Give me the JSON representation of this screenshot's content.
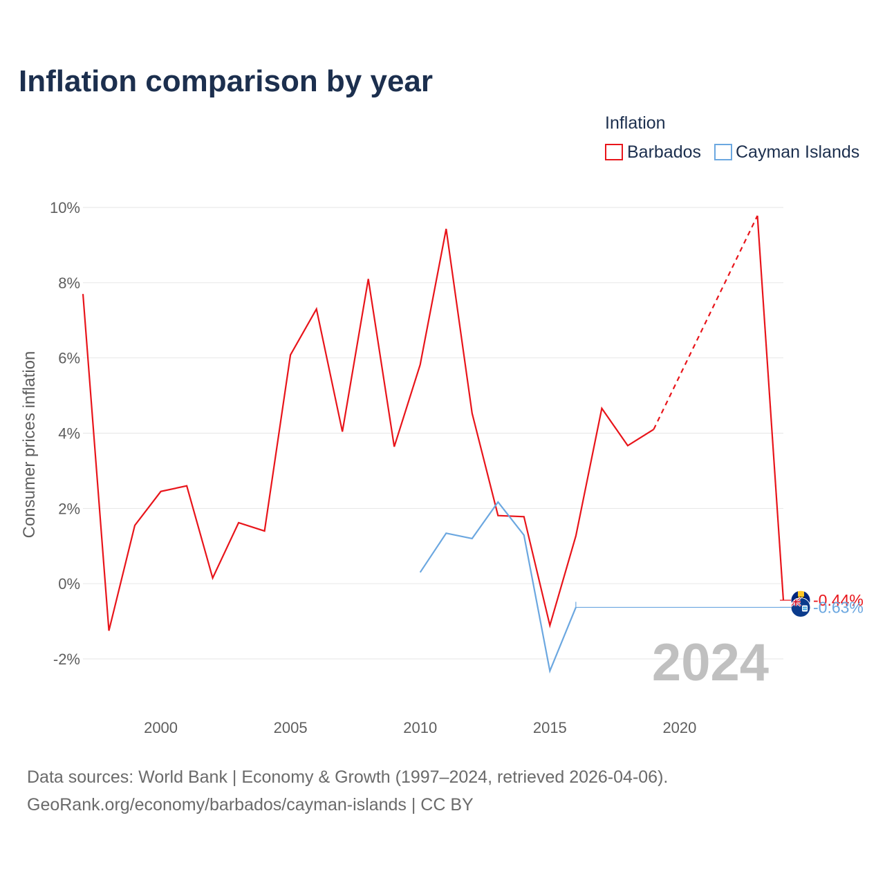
{
  "chart_data": {
    "type": "line",
    "title": "Inflation comparison by year",
    "legend": {
      "title": "Inflation",
      "placement": "top-right"
    },
    "xlabel": "",
    "ylabel": "Consumer prices inflation",
    "xlim": [
      1997,
      2024
    ],
    "ylim": [
      -2,
      10
    ],
    "x_ticks": [
      2000,
      2005,
      2010,
      2015,
      2020
    ],
    "x_tick_labels": [
      "2000",
      "2005",
      "2010",
      "2015",
      "2020"
    ],
    "y_ticks": [
      -2,
      0,
      2,
      4,
      6,
      8,
      10
    ],
    "y_tick_labels": [
      "-2%",
      "0%",
      "2%",
      "4%",
      "6%",
      "8%",
      "10%"
    ],
    "grid": true,
    "highlight_year": "2024",
    "series": [
      {
        "name": "Barbados",
        "color": "#e8141a",
        "flag_icon": "barbados-flag-icon",
        "end_label": "-0.44%",
        "gap_years": [
          2020,
          2021,
          2022
        ],
        "points": [
          {
            "x": 1997,
            "y": 7.7
          },
          {
            "x": 1998,
            "y": -1.25
          },
          {
            "x": 1999,
            "y": 1.55
          },
          {
            "x": 2000,
            "y": 2.45
          },
          {
            "x": 2001,
            "y": 2.6
          },
          {
            "x": 2002,
            "y": 0.15
          },
          {
            "x": 2003,
            "y": 1.62
          },
          {
            "x": 2004,
            "y": 1.4
          },
          {
            "x": 2005,
            "y": 6.08
          },
          {
            "x": 2006,
            "y": 7.3
          },
          {
            "x": 2007,
            "y": 4.04
          },
          {
            "x": 2008,
            "y": 8.1
          },
          {
            "x": 2009,
            "y": 3.64
          },
          {
            "x": 2010,
            "y": 5.82
          },
          {
            "x": 2011,
            "y": 9.43
          },
          {
            "x": 2012,
            "y": 4.53
          },
          {
            "x": 2013,
            "y": 1.81
          },
          {
            "x": 2014,
            "y": 1.78
          },
          {
            "x": 2015,
            "y": -1.11
          },
          {
            "x": 2016,
            "y": 1.27
          },
          {
            "x": 2017,
            "y": 4.66
          },
          {
            "x": 2018,
            "y": 3.67
          },
          {
            "x": 2019,
            "y": 4.1
          },
          {
            "x": 2023,
            "y": 9.78
          },
          {
            "x": 2024,
            "y": -0.44
          }
        ]
      },
      {
        "name": "Cayman Islands",
        "color": "#6ba7e0",
        "flag_icon": "cayman-islands-flag-icon",
        "end_label": "-0.63%",
        "carried_forward_from": 2016,
        "points": [
          {
            "x": 2010,
            "y": 0.3
          },
          {
            "x": 2011,
            "y": 1.34
          },
          {
            "x": 2012,
            "y": 1.2
          },
          {
            "x": 2013,
            "y": 2.17
          },
          {
            "x": 2014,
            "y": 1.29
          },
          {
            "x": 2015,
            "y": -2.32
          },
          {
            "x": 2016,
            "y": -0.63
          }
        ]
      }
    ]
  },
  "footer": {
    "source_line1": "Data sources: World Bank | Economy & Growth (1997–2024, retrieved 2026-04-06).",
    "source_line2": "GeoRank.org/economy/barbados/cayman-islands | CC BY"
  }
}
